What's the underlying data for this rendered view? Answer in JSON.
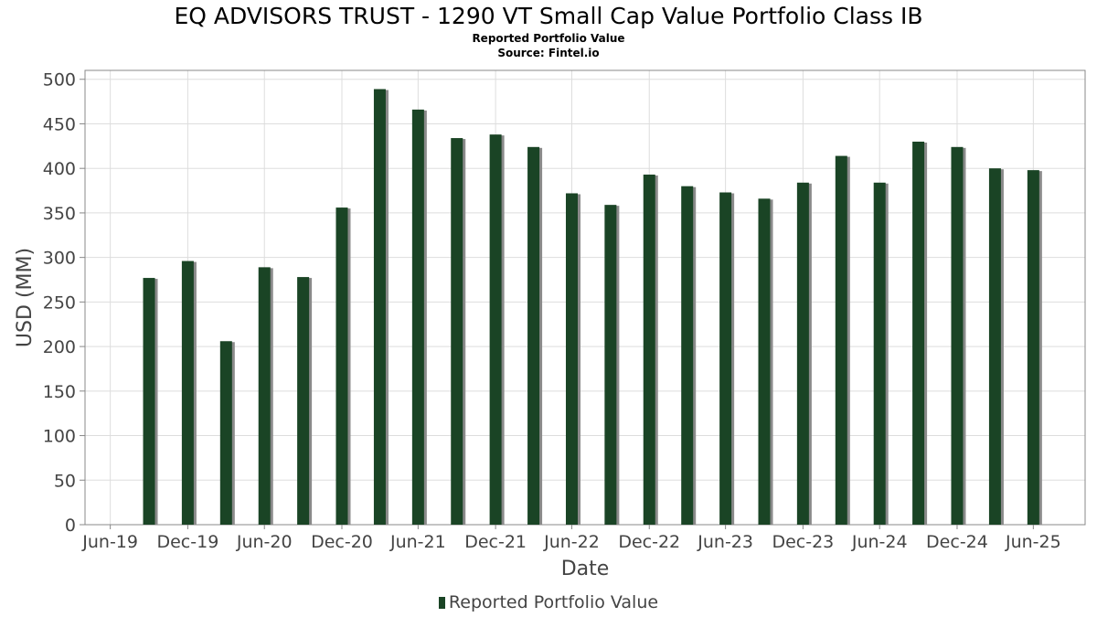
{
  "chart_data": {
    "type": "bar",
    "title": "EQ ADVISORS TRUST - 1290 VT Small Cap Value Portfolio Class IB",
    "subtitles": [
      "Reported Portfolio Value",
      "Source: Fintel.io"
    ],
    "xlabel": "Date",
    "ylabel": "USD (MM)",
    "ylim": [
      0,
      510
    ],
    "yticks": [
      0,
      50,
      100,
      150,
      200,
      250,
      300,
      350,
      400,
      450,
      500
    ],
    "xlim": [
      "2019-05-01",
      "2025-10-31"
    ],
    "xticks": [
      {
        "label": "Jun-19",
        "date": "2019-06-30"
      },
      {
        "label": "Dec-19",
        "date": "2019-12-31"
      },
      {
        "label": "Jun-20",
        "date": "2020-06-30"
      },
      {
        "label": "Dec-20",
        "date": "2020-12-31"
      },
      {
        "label": "Jun-21",
        "date": "2021-06-30"
      },
      {
        "label": "Dec-21",
        "date": "2021-12-31"
      },
      {
        "label": "Jun-22",
        "date": "2022-06-30"
      },
      {
        "label": "Dec-22",
        "date": "2022-12-31"
      },
      {
        "label": "Jun-23",
        "date": "2023-06-30"
      },
      {
        "label": "Dec-23",
        "date": "2023-12-31"
      },
      {
        "label": "Jun-24",
        "date": "2024-06-30"
      },
      {
        "label": "Dec-24",
        "date": "2024-12-31"
      },
      {
        "label": "Jun-25",
        "date": "2025-06-30"
      }
    ],
    "grid": true,
    "legend": "bottom-center",
    "series": [
      {
        "name": "Reported Portfolio Value",
        "color": "#1a4425",
        "points": [
          {
            "x": "2019-09-30",
            "y": 277
          },
          {
            "x": "2019-12-31",
            "y": 296
          },
          {
            "x": "2020-03-31",
            "y": 206
          },
          {
            "x": "2020-06-30",
            "y": 289
          },
          {
            "x": "2020-09-30",
            "y": 278
          },
          {
            "x": "2020-12-31",
            "y": 356
          },
          {
            "x": "2021-03-31",
            "y": 489
          },
          {
            "x": "2021-06-30",
            "y": 466
          },
          {
            "x": "2021-09-30",
            "y": 434
          },
          {
            "x": "2021-12-31",
            "y": 438
          },
          {
            "x": "2022-03-31",
            "y": 424
          },
          {
            "x": "2022-06-30",
            "y": 372
          },
          {
            "x": "2022-09-30",
            "y": 359
          },
          {
            "x": "2022-12-31",
            "y": 393
          },
          {
            "x": "2023-03-31",
            "y": 380
          },
          {
            "x": "2023-06-30",
            "y": 373
          },
          {
            "x": "2023-09-30",
            "y": 366
          },
          {
            "x": "2023-12-31",
            "y": 384
          },
          {
            "x": "2024-03-31",
            "y": 414
          },
          {
            "x": "2024-06-30",
            "y": 384
          },
          {
            "x": "2024-09-30",
            "y": 430
          },
          {
            "x": "2024-12-31",
            "y": 424
          },
          {
            "x": "2025-03-31",
            "y": 400
          },
          {
            "x": "2025-06-30",
            "y": 398
          }
        ]
      }
    ]
  }
}
